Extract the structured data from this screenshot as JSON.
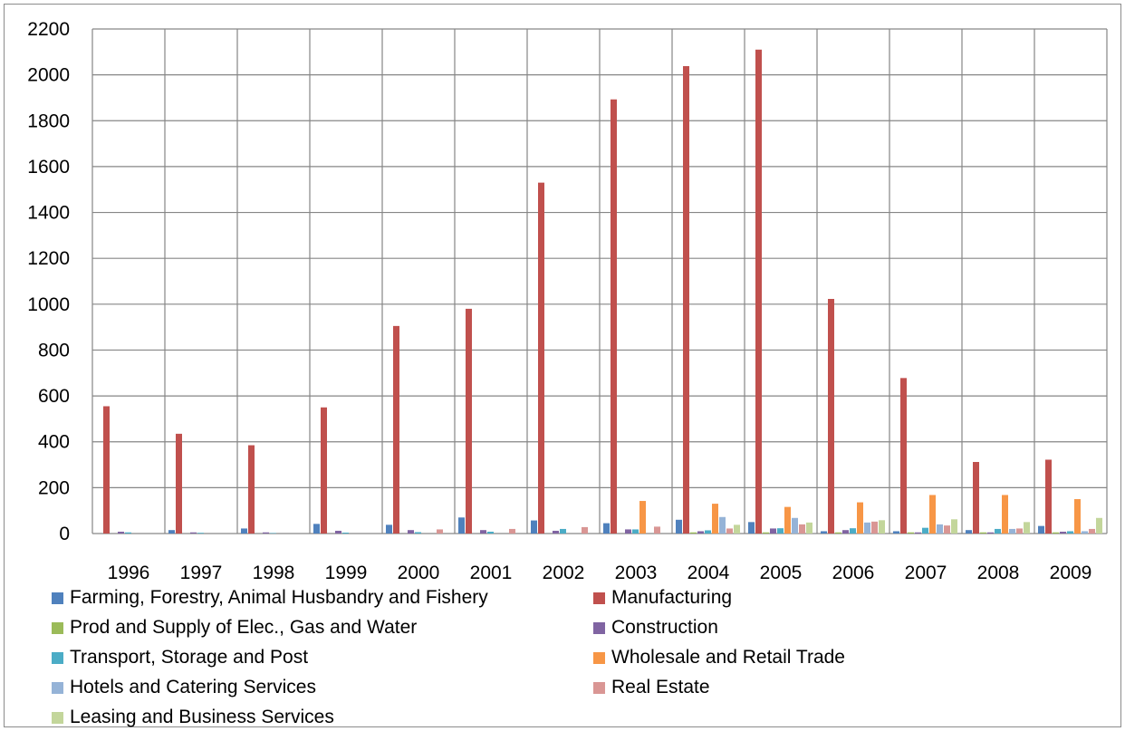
{
  "chart_data": {
    "type": "bar",
    "title": "",
    "xlabel": "",
    "ylabel": "",
    "ylim": [
      0,
      2200
    ],
    "yticks": [
      0,
      200,
      400,
      600,
      800,
      1000,
      1200,
      1400,
      1600,
      1800,
      2000,
      2200
    ],
    "grid": "on (horizontal and vertical)",
    "legend_position": "bottom",
    "categories": [
      "1996",
      "1997",
      "1998",
      "1999",
      "2000",
      "2001",
      "2002",
      "2003",
      "2004",
      "2005",
      "2006",
      "2007",
      "2008",
      "2009"
    ],
    "series": [
      {
        "name": "Farming, Forestry, Animal Husbandry and Fishery",
        "color": "#4F81BD",
        "values": [
          0,
          15,
          22,
          42,
          38,
          70,
          57,
          45,
          60,
          50,
          10,
          10,
          15,
          33
        ]
      },
      {
        "name": "Manufacturing",
        "color": "#C0504D",
        "values": [
          555,
          435,
          385,
          550,
          905,
          980,
          1530,
          1893,
          2038,
          2110,
          1023,
          678,
          312,
          322
        ]
      },
      {
        "name": "Prod and Supply of Elec., Gas and Water",
        "color": "#9BBB59",
        "values": [
          0,
          0,
          0,
          0,
          0,
          0,
          0,
          0,
          5,
          5,
          5,
          5,
          5,
          5
        ]
      },
      {
        "name": "Construction",
        "color": "#8064A2",
        "values": [
          8,
          5,
          5,
          12,
          15,
          15,
          12,
          18,
          10,
          22,
          15,
          5,
          5,
          8
        ]
      },
      {
        "name": "Transport, Storage and Post",
        "color": "#4BACC6",
        "values": [
          5,
          3,
          2,
          4,
          6,
          8,
          20,
          18,
          14,
          23,
          23,
          25,
          20,
          10
        ]
      },
      {
        "name": "Wholesale and Retail Trade",
        "color": "#F79646",
        "values": [
          0,
          0,
          0,
          0,
          0,
          0,
          0,
          142,
          130,
          116,
          136,
          168,
          168,
          150
        ]
      },
      {
        "name": "Hotels and Catering Services",
        "color": "#95B3D7",
        "values": [
          0,
          0,
          0,
          0,
          0,
          0,
          0,
          0,
          72,
          68,
          48,
          40,
          20,
          10
        ]
      },
      {
        "name": "Real Estate",
        "color": "#D99694",
        "values": [
          0,
          0,
          0,
          0,
          18,
          20,
          28,
          30,
          22,
          40,
          52,
          35,
          22,
          20
        ]
      },
      {
        "name": "Leasing and Business Services",
        "color": "#C3D69B",
        "values": [
          0,
          0,
          0,
          0,
          0,
          0,
          0,
          0,
          38,
          48,
          58,
          62,
          50,
          68
        ]
      }
    ]
  }
}
